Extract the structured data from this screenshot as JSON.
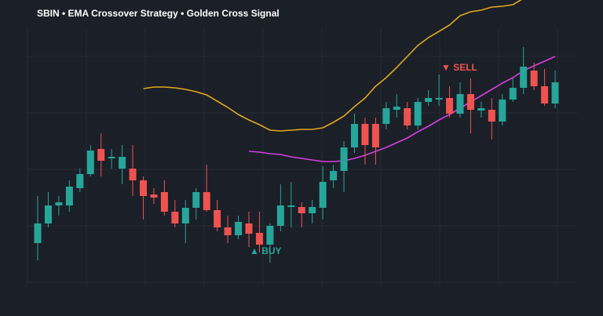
{
  "chart_data": {
    "type": "candlestick",
    "title": "SBIN • EMA Crossover Strategy • Golden Cross Signal",
    "ylim": [
      500,
      700
    ],
    "yticks": [
      520,
      556,
      592,
      628,
      664
    ],
    "grid": true,
    "up_color": "#26a69a",
    "down_color": "#ef5350",
    "open": [
      545,
      557.5,
      569,
      569,
      580,
      589,
      605,
      599,
      592.5,
      592.5,
      585,
      576,
      577.5,
      565,
      557.5,
      567.5,
      577.5,
      566,
      555,
      550,
      557.5,
      551.5,
      544,
      556,
      568,
      568,
      564,
      567.5,
      585,
      591,
      606,
      621,
      621,
      621,
      630,
      631,
      620,
      635,
      636.5,
      637.5,
      627.5,
      640,
      629.5,
      630,
      622.5,
      636.5,
      644,
      655,
      645,
      634
    ],
    "high": [
      575,
      577.5,
      575,
      585,
      592.5,
      607.5,
      615,
      605,
      607.5,
      607.5,
      587.5,
      580,
      585,
      572.5,
      572.5,
      580,
      595,
      572.5,
      562.5,
      562.5,
      565,
      565,
      557.5,
      582.5,
      584,
      571,
      572.5,
      594,
      595,
      610,
      627.5,
      625,
      625,
      635,
      640,
      635,
      637.5,
      642.5,
      652.5,
      645,
      647.5,
      650,
      635,
      637.5,
      640,
      650,
      670,
      660,
      656,
      655
    ],
    "low": [
      534,
      555,
      562.5,
      565,
      577.5,
      587.5,
      587.5,
      592.5,
      582.5,
      575,
      560,
      570,
      562.5,
      555,
      545,
      560,
      565,
      552.5,
      545,
      547.5,
      542.5,
      539,
      532.5,
      552.5,
      555,
      555,
      557.5,
      560,
      580,
      577.5,
      602.5,
      595,
      595,
      617.5,
      625,
      617.5,
      617.5,
      632.5,
      632.5,
      625,
      625,
      615,
      625,
      611,
      620,
      635,
      640,
      642.5,
      632.5,
      631
    ],
    "close": [
      557.5,
      569,
      571,
      581,
      589,
      604,
      597.5,
      600,
      600,
      585,
      575,
      574,
      565,
      557.5,
      567.5,
      577.5,
      566,
      555,
      550,
      558.5,
      551,
      544,
      556,
      569,
      569,
      564,
      568,
      584,
      591,
      606,
      621,
      607.5,
      606,
      631,
      632,
      620,
      635,
      637.5,
      637.5,
      627.5,
      640,
      630,
      631,
      622.5,
      636.5,
      644,
      657.5,
      645,
      634,
      647.5
    ],
    "lines": [
      {
        "color": "#e0a81c",
        "values": [
          null,
          null,
          null,
          null,
          null,
          null,
          null,
          null,
          null,
          null,
          643.5,
          644.5,
          644.5,
          644,
          643,
          641.5,
          639.5,
          635.5,
          631.5,
          627,
          623.5,
          620.5,
          617,
          616.5,
          617,
          617.5,
          617.5,
          618.5,
          622,
          626,
          632,
          637.5,
          645,
          650.5,
          657,
          664,
          671,
          676,
          680,
          684,
          690,
          692.5,
          693.5,
          695.5,
          696,
          697,
          701,
          null,
          null,
          null
        ]
      },
      {
        "color": "#d63ee0",
        "values": [
          null,
          null,
          null,
          null,
          null,
          null,
          null,
          null,
          null,
          null,
          null,
          null,
          null,
          null,
          null,
          null,
          null,
          null,
          null,
          null,
          603.5,
          603,
          602,
          601.5,
          600,
          599,
          598,
          597,
          597,
          597.5,
          599,
          601,
          603.5,
          606,
          609,
          612,
          616,
          619.5,
          623.5,
          627,
          631,
          635,
          639,
          643,
          647,
          650.5,
          655,
          658,
          661,
          664
        ]
      }
    ],
    "annotations": [
      "▲ BUY",
      "▼ SELL"
    ]
  }
}
